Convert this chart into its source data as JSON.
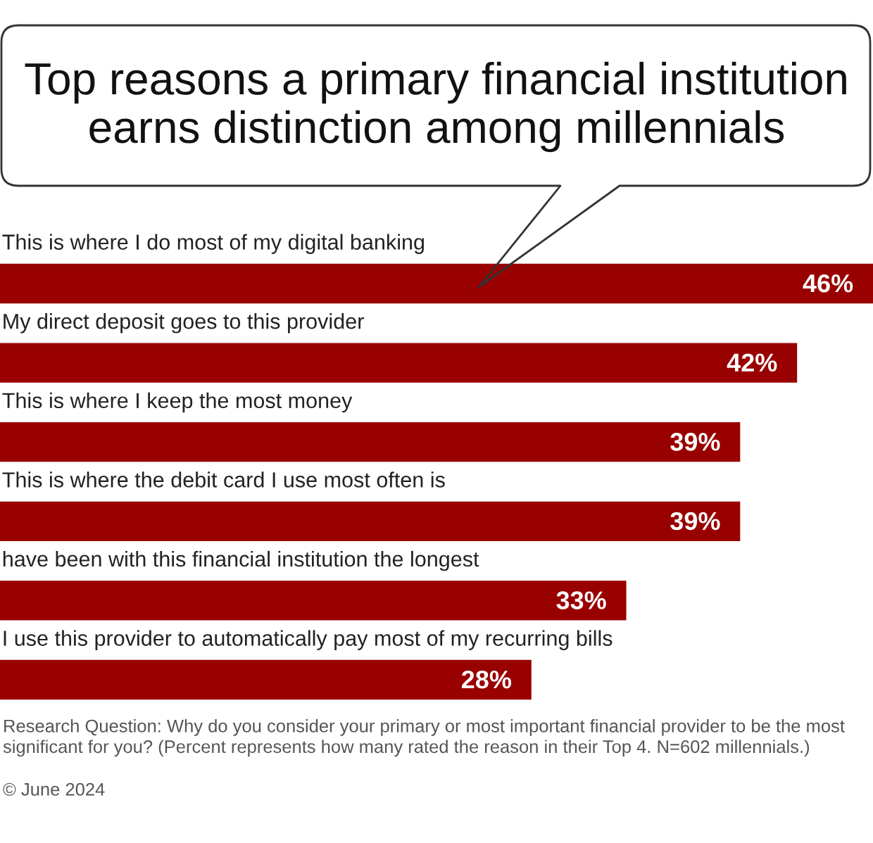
{
  "chart_data": {
    "type": "bar",
    "orientation": "horizontal",
    "title": "Top reasons a primary financial institution\nearns distinction among millennials",
    "categories": [
      "This is where I do most of my digital banking",
      "My direct deposit goes to this provider",
      "This is where I keep the most money",
      "This is where the debit card I use most often is",
      "have been with this financial institution the longest",
      "I use this provider to automatically pay most of my recurring bills"
    ],
    "values": [
      46,
      42,
      39,
      39,
      33,
      28
    ],
    "value_labels": [
      "46%",
      "42%",
      "39%",
      "39%",
      "33%",
      "28%"
    ],
    "color": "#990000",
    "annotations": [
      "Research Question: Why do you consider your primary or most important financial provider to be the most\nsignificant for you? (Percent represents how many rated the reason in their Top 4. N=602 millennials.)",
      "© June 2024"
    ]
  }
}
